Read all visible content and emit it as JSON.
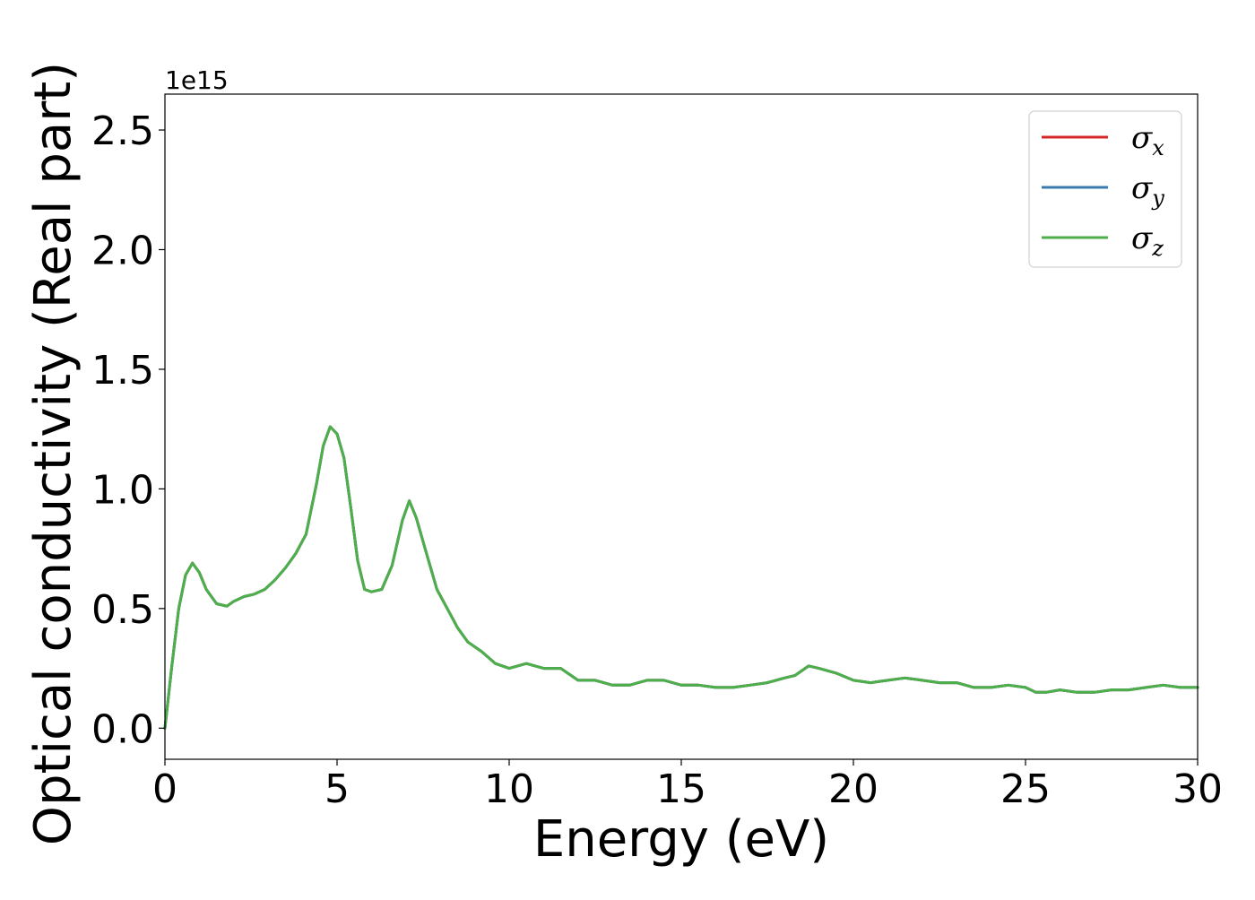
{
  "chart_data": {
    "type": "line",
    "title": "",
    "xlabel": "Energy (eV)",
    "ylabel": "Optical conductivity (Real part)",
    "y_offset_text": "1e15",
    "xlim": [
      0,
      30
    ],
    "ylim": [
      -0.13,
      2.65
    ],
    "xticks": [
      0,
      5,
      10,
      15,
      20,
      25,
      30
    ],
    "xtick_labels": [
      "0",
      "5",
      "10",
      "15",
      "20",
      "25",
      "30"
    ],
    "yticks": [
      0.0,
      0.5,
      1.0,
      1.5,
      2.0,
      2.5
    ],
    "ytick_labels": [
      "0.0",
      "0.5",
      "1.0",
      "1.5",
      "2.0",
      "2.5"
    ],
    "grid": false,
    "legend_position": "top-right",
    "x": [
      0,
      0.2,
      0.4,
      0.6,
      0.8,
      1.0,
      1.2,
      1.5,
      1.8,
      2.0,
      2.3,
      2.6,
      2.9,
      3.2,
      3.5,
      3.8,
      4.1,
      4.4,
      4.6,
      4.8,
      5.0,
      5.2,
      5.4,
      5.6,
      5.8,
      6.0,
      6.3,
      6.6,
      6.9,
      7.1,
      7.3,
      7.6,
      7.9,
      8.2,
      8.5,
      8.8,
      9.2,
      9.6,
      10.0,
      10.5,
      11.0,
      11.5,
      12.0,
      12.5,
      13.0,
      13.5,
      14.0,
      14.5,
      15.0,
      15.5,
      16.0,
      16.5,
      17.0,
      17.5,
      18.0,
      18.3,
      18.7,
      19.0,
      19.5,
      20.0,
      20.5,
      21.0,
      21.5,
      22.0,
      22.5,
      23.0,
      23.5,
      24.0,
      24.5,
      25.0,
      25.3,
      25.6,
      26.0,
      26.5,
      27.0,
      27.5,
      28.0,
      28.5,
      29.0,
      29.5,
      30.0
    ],
    "series": [
      {
        "name": "σx",
        "legend_symbol": "σ",
        "legend_sub": "x",
        "color": "#d62728",
        "values": [
          0.0,
          0.26,
          0.5,
          0.64,
          0.69,
          0.65,
          0.58,
          0.52,
          0.51,
          0.53,
          0.55,
          0.56,
          0.58,
          0.62,
          0.67,
          0.73,
          0.81,
          1.02,
          1.18,
          1.26,
          1.23,
          1.13,
          0.92,
          0.7,
          0.58,
          0.57,
          0.58,
          0.68,
          0.87,
          0.95,
          0.88,
          0.73,
          0.58,
          0.5,
          0.42,
          0.36,
          0.32,
          0.27,
          0.25,
          0.27,
          0.25,
          0.25,
          0.2,
          0.2,
          0.18,
          0.18,
          0.2,
          0.2,
          0.18,
          0.18,
          0.17,
          0.17,
          0.18,
          0.19,
          0.21,
          0.22,
          0.26,
          0.25,
          0.23,
          0.2,
          0.19,
          0.2,
          0.21,
          0.2,
          0.19,
          0.19,
          0.17,
          0.17,
          0.18,
          0.17,
          0.15,
          0.15,
          0.16,
          0.15,
          0.15,
          0.16,
          0.16,
          0.17,
          0.18,
          0.17,
          0.17
        ]
      },
      {
        "name": "σy",
        "legend_symbol": "σ",
        "legend_sub": "y",
        "color": "#3a7bb2",
        "values": [
          0.0,
          0.26,
          0.5,
          0.64,
          0.69,
          0.65,
          0.58,
          0.52,
          0.51,
          0.53,
          0.55,
          0.56,
          0.58,
          0.62,
          0.67,
          0.73,
          0.81,
          1.02,
          1.18,
          1.26,
          1.23,
          1.13,
          0.92,
          0.7,
          0.58,
          0.57,
          0.58,
          0.68,
          0.87,
          0.95,
          0.88,
          0.73,
          0.58,
          0.5,
          0.42,
          0.36,
          0.32,
          0.27,
          0.25,
          0.27,
          0.25,
          0.25,
          0.2,
          0.2,
          0.18,
          0.18,
          0.2,
          0.2,
          0.18,
          0.18,
          0.17,
          0.17,
          0.18,
          0.19,
          0.21,
          0.22,
          0.26,
          0.25,
          0.23,
          0.2,
          0.19,
          0.2,
          0.21,
          0.2,
          0.19,
          0.19,
          0.17,
          0.17,
          0.18,
          0.17,
          0.15,
          0.15,
          0.16,
          0.15,
          0.15,
          0.16,
          0.16,
          0.17,
          0.18,
          0.17,
          0.17
        ]
      },
      {
        "name": "σz",
        "legend_symbol": "σ",
        "legend_sub": "z",
        "color": "#4daf4a",
        "values": [
          0.0,
          0.26,
          0.5,
          0.64,
          0.69,
          0.65,
          0.58,
          0.52,
          0.51,
          0.53,
          0.55,
          0.56,
          0.58,
          0.62,
          0.67,
          0.73,
          0.81,
          1.02,
          1.18,
          1.26,
          1.23,
          1.13,
          0.92,
          0.7,
          0.58,
          0.57,
          0.58,
          0.68,
          0.87,
          0.95,
          0.88,
          0.73,
          0.58,
          0.5,
          0.42,
          0.36,
          0.32,
          0.27,
          0.25,
          0.27,
          0.25,
          0.25,
          0.2,
          0.2,
          0.18,
          0.18,
          0.2,
          0.2,
          0.18,
          0.18,
          0.17,
          0.17,
          0.18,
          0.19,
          0.21,
          0.22,
          0.26,
          0.25,
          0.23,
          0.2,
          0.19,
          0.2,
          0.21,
          0.2,
          0.19,
          0.19,
          0.17,
          0.17,
          0.18,
          0.17,
          0.15,
          0.15,
          0.16,
          0.15,
          0.15,
          0.16,
          0.16,
          0.17,
          0.18,
          0.17,
          0.17
        ]
      }
    ]
  }
}
